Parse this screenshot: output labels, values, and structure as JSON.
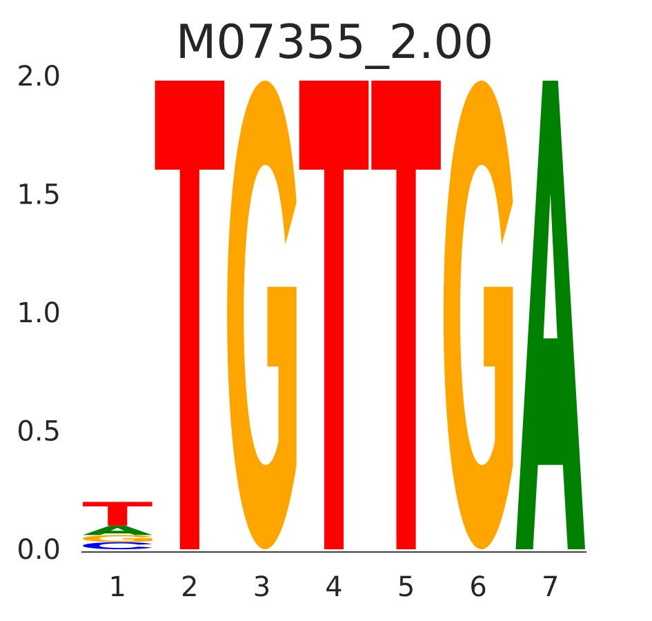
{
  "chart_data": {
    "type": "sequence-logo",
    "title": "M07355_2.00",
    "xlabel": "",
    "ylabel": "",
    "ylim": [
      0,
      2.0
    ],
    "y_ticks": [
      "0.0",
      "0.5",
      "1.0",
      "1.5",
      "2.0"
    ],
    "x_ticks": [
      "1",
      "2",
      "3",
      "4",
      "5",
      "6",
      "7"
    ],
    "grid": false,
    "colors": {
      "A": "#008000",
      "C": "#0000ff",
      "G": "#ffa500",
      "T": "#ff0000"
    },
    "positions": [
      {
        "pos": "1",
        "letters": [
          {
            "base": "C",
            "height": 0.03
          },
          {
            "base": "G",
            "height": 0.03
          },
          {
            "base": "A",
            "height": 0.04
          },
          {
            "base": "T",
            "height": 0.1
          }
        ]
      },
      {
        "pos": "2",
        "letters": [
          {
            "base": "T",
            "height": 1.98
          }
        ]
      },
      {
        "pos": "3",
        "letters": [
          {
            "base": "G",
            "height": 1.98
          }
        ]
      },
      {
        "pos": "4",
        "letters": [
          {
            "base": "T",
            "height": 1.98
          }
        ]
      },
      {
        "pos": "5",
        "letters": [
          {
            "base": "T",
            "height": 1.98
          }
        ]
      },
      {
        "pos": "6",
        "letters": [
          {
            "base": "G",
            "height": 1.98
          }
        ]
      },
      {
        "pos": "7",
        "letters": [
          {
            "base": "A",
            "height": 1.98
          }
        ]
      }
    ]
  }
}
